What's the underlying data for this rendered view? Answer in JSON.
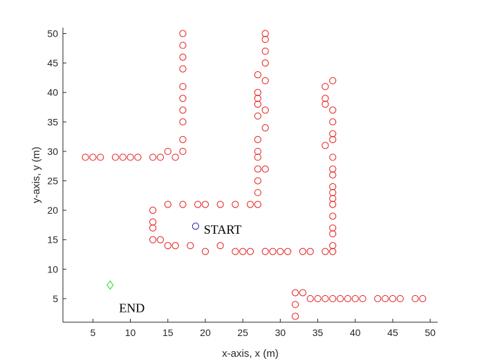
{
  "chart_data": {
    "type": "scatter",
    "title": "",
    "xlabel": "x-axis, x (m)",
    "ylabel": "y-axis, y (m)",
    "xlim": [
      1,
      51
    ],
    "ylim": [
      1,
      51
    ],
    "xticks": [
      5,
      10,
      15,
      20,
      25,
      30,
      35,
      40,
      45,
      50
    ],
    "yticks": [
      5,
      10,
      15,
      20,
      25,
      30,
      35,
      40,
      45,
      50
    ],
    "grid": false,
    "series": [
      {
        "name": "obstacles",
        "marker": "circle",
        "color": "#e41a1a",
        "points": [
          [
            4,
            29
          ],
          [
            5,
            29
          ],
          [
            6,
            29
          ],
          [
            8,
            29
          ],
          [
            9,
            29
          ],
          [
            10,
            29
          ],
          [
            11,
            29
          ],
          [
            13,
            29
          ],
          [
            14,
            29
          ],
          [
            16,
            29
          ],
          [
            15,
            30
          ],
          [
            17,
            30
          ],
          [
            17,
            32
          ],
          [
            17,
            35
          ],
          [
            17,
            37
          ],
          [
            17,
            39
          ],
          [
            17,
            41
          ],
          [
            17,
            44
          ],
          [
            17,
            46
          ],
          [
            17,
            48
          ],
          [
            17,
            50
          ],
          [
            13,
            20
          ],
          [
            13,
            18
          ],
          [
            13,
            17
          ],
          [
            13,
            15
          ],
          [
            14,
            15
          ],
          [
            15,
            14
          ],
          [
            16,
            14
          ],
          [
            18,
            14
          ],
          [
            22,
            14
          ],
          [
            15,
            21
          ],
          [
            17,
            21
          ],
          [
            19,
            21
          ],
          [
            20,
            21
          ],
          [
            22,
            21
          ],
          [
            24,
            21
          ],
          [
            26,
            21
          ],
          [
            27,
            21
          ],
          [
            27,
            23
          ],
          [
            27,
            25
          ],
          [
            27,
            27
          ],
          [
            27,
            29
          ],
          [
            27,
            30
          ],
          [
            27,
            32
          ],
          [
            27,
            36
          ],
          [
            27,
            38
          ],
          [
            27,
            39
          ],
          [
            27,
            40
          ],
          [
            27,
            43
          ],
          [
            28,
            27
          ],
          [
            28,
            34
          ],
          [
            28,
            37
          ],
          [
            28,
            42
          ],
          [
            28,
            45
          ],
          [
            28,
            47
          ],
          [
            28,
            49
          ],
          [
            28,
            50
          ],
          [
            20,
            13
          ],
          [
            24,
            13
          ],
          [
            25,
            13
          ],
          [
            26,
            13
          ],
          [
            28,
            13
          ],
          [
            29,
            13
          ],
          [
            30,
            13
          ],
          [
            31,
            13
          ],
          [
            33,
            13
          ],
          [
            34,
            13
          ],
          [
            36,
            13
          ],
          [
            37,
            13
          ],
          [
            37,
            14
          ],
          [
            37,
            16
          ],
          [
            37,
            17
          ],
          [
            37,
            19
          ],
          [
            37,
            21
          ],
          [
            37,
            22
          ],
          [
            37,
            23
          ],
          [
            37,
            24
          ],
          [
            37,
            26
          ],
          [
            37,
            27
          ],
          [
            37,
            29
          ],
          [
            37,
            32
          ],
          [
            37,
            33
          ],
          [
            37,
            35
          ],
          [
            37,
            37
          ],
          [
            37,
            42
          ],
          [
            36,
            31
          ],
          [
            36,
            38
          ],
          [
            36,
            39
          ],
          [
            36,
            41
          ],
          [
            32,
            2
          ],
          [
            32,
            4
          ],
          [
            32,
            6
          ],
          [
            33,
            6
          ],
          [
            34,
            5
          ],
          [
            35,
            5
          ],
          [
            36,
            5
          ],
          [
            37,
            5
          ],
          [
            38,
            5
          ],
          [
            39,
            5
          ],
          [
            40,
            5
          ],
          [
            41,
            5
          ],
          [
            43,
            5
          ],
          [
            44,
            5
          ],
          [
            45,
            5
          ],
          [
            46,
            5
          ],
          [
            48,
            5
          ],
          [
            49,
            5
          ]
        ]
      },
      {
        "name": "start",
        "marker": "circle",
        "color": "#1f1fb4",
        "points": [
          [
            18.7,
            17.3
          ]
        ]
      },
      {
        "name": "end",
        "marker": "diamond",
        "color": "#22dd22",
        "points": [
          [
            7.3,
            7.3
          ]
        ]
      }
    ],
    "annotations": [
      {
        "text": "START",
        "x": 19.8,
        "y": 16.0
      },
      {
        "text": "END",
        "x": 8.5,
        "y": 2.7
      }
    ]
  }
}
